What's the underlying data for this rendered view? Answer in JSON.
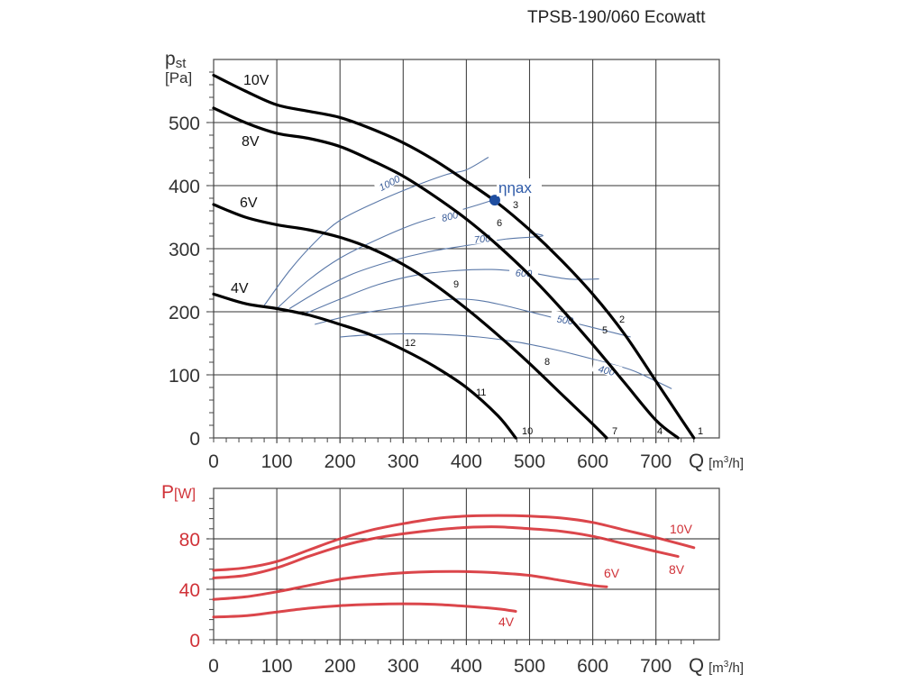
{
  "chart_data": [
    {
      "type": "line",
      "title": "TPSB-190/060 Ecowatt",
      "ylabel_main": "p",
      "ylabel_sub": "st",
      "ylabel_unit": "[Pa]",
      "xlabel": "Q",
      "xlabel_unit_pre": "[m",
      "xlabel_unit_sup": "3",
      "xlabel_unit_post": "/h]",
      "xlim": [
        0,
        800
      ],
      "ylim": [
        0,
        600
      ],
      "x_ticks": [
        0,
        100,
        200,
        300,
        400,
        500,
        600,
        700
      ],
      "y_ticks": [
        0,
        100,
        200,
        300,
        400,
        500
      ],
      "grid": true,
      "series": [
        {
          "name": "10V",
          "x": [
            0,
            50,
            100,
            150,
            200,
            250,
            300,
            350,
            400,
            450,
            500,
            550,
            600,
            650,
            700,
            730,
            760
          ],
          "y": [
            575,
            550,
            528,
            518,
            508,
            490,
            468,
            440,
            407,
            372,
            330,
            282,
            228,
            165,
            90,
            45,
            0
          ]
        },
        {
          "name": "8V",
          "x": [
            0,
            50,
            100,
            150,
            200,
            250,
            300,
            350,
            400,
            450,
            500,
            550,
            600,
            650,
            700,
            735
          ],
          "y": [
            523,
            500,
            483,
            475,
            462,
            440,
            415,
            383,
            347,
            305,
            258,
            205,
            148,
            88,
            28,
            0
          ]
        },
        {
          "name": "6V",
          "x": [
            0,
            50,
            100,
            150,
            200,
            250,
            300,
            350,
            400,
            450,
            500,
            550,
            600,
            622
          ],
          "y": [
            370,
            350,
            338,
            330,
            318,
            300,
            275,
            243,
            205,
            163,
            118,
            70,
            22,
            0
          ]
        },
        {
          "name": "4V",
          "x": [
            0,
            50,
            100,
            150,
            200,
            250,
            300,
            350,
            400,
            450,
            478
          ],
          "y": [
            228,
            213,
            205,
            195,
            180,
            163,
            140,
            113,
            80,
            35,
            0
          ]
        }
      ],
      "efficiency_isolines": [
        {
          "label": "1000",
          "x": [
            80,
            120,
            160,
            200,
            260,
            320,
            370,
            400,
            435
          ],
          "y": [
            210,
            265,
            310,
            345,
            375,
            400,
            418,
            425,
            445
          ]
        },
        {
          "label": "800",
          "x": [
            100,
            150,
            200,
            260,
            320,
            380,
            420,
            445
          ],
          "y": [
            205,
            250,
            285,
            315,
            340,
            358,
            370,
            378
          ]
        },
        {
          "label": "700",
          "x": [
            120,
            170,
            220,
            280,
            340,
            400,
            460,
            520,
            500
          ],
          "y": [
            205,
            235,
            260,
            280,
            295,
            305,
            315,
            320,
            325
          ]
        },
        {
          "label": "600",
          "x": [
            140,
            200,
            260,
            320,
            380,
            440,
            500,
            560,
            610
          ],
          "y": [
            195,
            220,
            243,
            258,
            265,
            267,
            262,
            252,
            252
          ]
        },
        {
          "label": "500",
          "x": [
            160,
            220,
            280,
            340,
            380,
            420,
            460,
            520,
            580,
            620,
            660
          ],
          "y": [
            180,
            195,
            205,
            215,
            220,
            218,
            210,
            195,
            180,
            170,
            160
          ]
        },
        {
          "label": "400",
          "x": [
            200,
            240,
            300,
            360,
            420,
            480,
            540,
            600,
            660,
            700,
            725
          ],
          "y": [
            160,
            163,
            165,
            164,
            160,
            152,
            140,
            125,
            108,
            90,
            78
          ]
        }
      ],
      "point_labels": [
        "1",
        "2",
        "3",
        "4",
        "5",
        "6",
        "7",
        "8",
        "9",
        "10",
        "11",
        "12"
      ],
      "eta_max": {
        "label": "ηηax",
        "x": 445,
        "y": 377
      }
    },
    {
      "type": "line",
      "ylabel_main": "P",
      "ylabel_unit": "[W]",
      "xlabel": "Q",
      "xlabel_unit_pre": "[m",
      "xlabel_unit_sup": "3",
      "xlabel_unit_post": "/h]",
      "xlim": [
        0,
        800
      ],
      "ylim": [
        0,
        120
      ],
      "x_ticks": [
        0,
        100,
        200,
        300,
        400,
        500,
        600,
        700
      ],
      "y_ticks": [
        0,
        40,
        80
      ],
      "grid": true,
      "series": [
        {
          "name": "10V",
          "x": [
            0,
            50,
            100,
            150,
            200,
            250,
            300,
            350,
            400,
            450,
            500,
            550,
            600,
            650,
            700,
            760
          ],
          "y": [
            55,
            57,
            62,
            71,
            80,
            87,
            92,
            96,
            98,
            98.5,
            98,
            96.5,
            93,
            87,
            81,
            73
          ]
        },
        {
          "name": "8V",
          "x": [
            0,
            50,
            100,
            150,
            200,
            250,
            300,
            350,
            400,
            450,
            500,
            550,
            600,
            650,
            700,
            735
          ],
          "y": [
            49,
            51,
            57,
            66,
            74,
            80,
            84,
            87,
            89,
            89.5,
            88,
            86,
            82,
            76,
            70,
            66
          ]
        },
        {
          "name": "6V",
          "x": [
            0,
            50,
            100,
            150,
            200,
            250,
            300,
            350,
            400,
            450,
            500,
            550,
            600,
            622
          ],
          "y": [
            32,
            34,
            38,
            43,
            48,
            51,
            53,
            54,
            54,
            53,
            51,
            47,
            43,
            42
          ]
        },
        {
          "name": "4V",
          "x": [
            0,
            50,
            100,
            150,
            200,
            250,
            300,
            350,
            400,
            450,
            478
          ],
          "y": [
            18,
            19,
            22,
            25,
            27,
            28,
            28.5,
            28,
            26.5,
            24.5,
            22.5
          ]
        }
      ]
    }
  ]
}
